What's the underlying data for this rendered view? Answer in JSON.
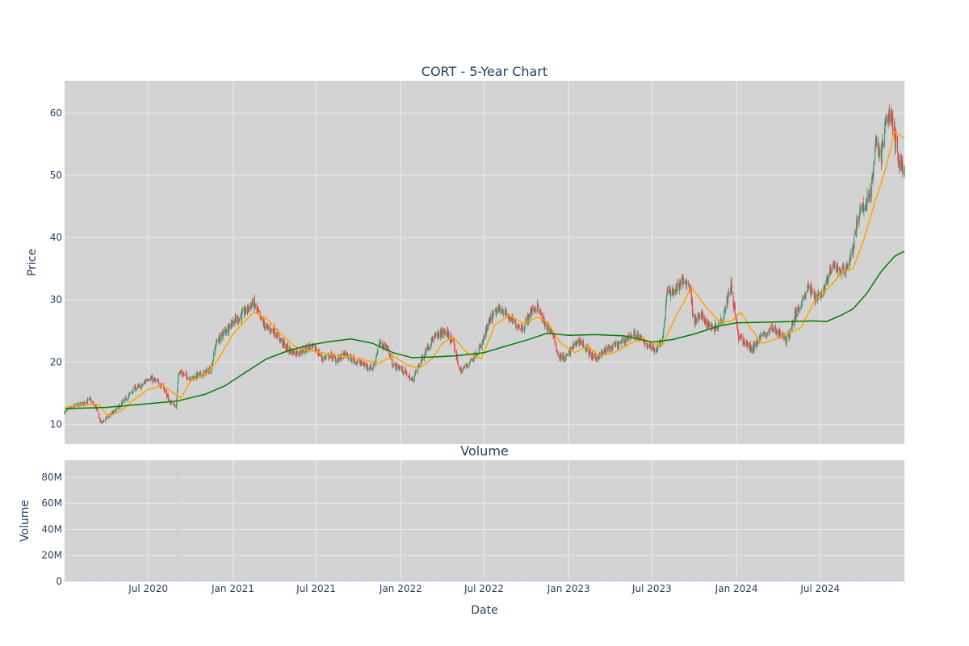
{
  "chart_data": {
    "type": "candlestick",
    "title": "CORT - 5-Year Chart",
    "subplot_title": "Volume",
    "xlabel": "Date",
    "ylabel_price": "Price",
    "ylabel_volume": "Volume",
    "x_range": [
      "2020-01-01",
      "2024-12-31"
    ],
    "x_ticks": [
      {
        "date": "2020-07-01",
        "label": "Jul 2020"
      },
      {
        "date": "2021-01-01",
        "label": "Jan 2021"
      },
      {
        "date": "2021-07-01",
        "label": "Jul 2021"
      },
      {
        "date": "2022-01-01",
        "label": "Jan 2022"
      },
      {
        "date": "2022-07-01",
        "label": "Jul 2022"
      },
      {
        "date": "2023-01-01",
        "label": "Jan 2023"
      },
      {
        "date": "2023-07-01",
        "label": "Jul 2023"
      },
      {
        "date": "2024-01-01",
        "label": "Jan 2024"
      },
      {
        "date": "2024-07-01",
        "label": "Jul 2024"
      }
    ],
    "price_ylim": [
      6.8,
      65.2
    ],
    "price_ticks": [
      10,
      20,
      30,
      40,
      50,
      60
    ],
    "volume_ylim": [
      0,
      93000000
    ],
    "volume_ticks": [
      {
        "value": 0,
        "label": "0"
      },
      {
        "value": 20000000,
        "label": "20M"
      },
      {
        "value": 40000000,
        "label": "40M"
      },
      {
        "value": 60000000,
        "label": "60M"
      },
      {
        "value": 80000000,
        "label": "80M"
      }
    ],
    "grid": true,
    "legend": "none",
    "colors": {
      "plot_bg": "#d3d3d3",
      "grid": "#ebebeb",
      "up": "#3d9970",
      "down": "#ef4444",
      "ma_short": "#ffa500",
      "ma_long": "#008000",
      "volume": "#c8c8f0"
    },
    "close_series": [
      [
        "2020-01-02",
        12.0
      ],
      [
        "2020-01-20",
        12.8
      ],
      [
        "2020-02-10",
        13.3
      ],
      [
        "2020-02-25",
        14.0
      ],
      [
        "2020-03-10",
        12.5
      ],
      [
        "2020-03-20",
        10.2
      ],
      [
        "2020-04-01",
        11.0
      ],
      [
        "2020-04-15",
        11.8
      ],
      [
        "2020-05-01",
        13.0
      ],
      [
        "2020-05-15",
        14.2
      ],
      [
        "2020-06-01",
        15.8
      ],
      [
        "2020-06-15",
        16.0
      ],
      [
        "2020-07-01",
        17.5
      ],
      [
        "2020-07-15",
        17.0
      ],
      [
        "2020-08-01",
        16.2
      ],
      [
        "2020-08-15",
        13.8
      ],
      [
        "2020-08-31",
        12.8
      ],
      [
        "2020-09-04",
        18.5
      ],
      [
        "2020-09-15",
        18.0
      ],
      [
        "2020-10-01",
        17.3
      ],
      [
        "2020-10-15",
        17.8
      ],
      [
        "2020-11-01",
        18.2
      ],
      [
        "2020-11-15",
        19.0
      ],
      [
        "2020-11-25",
        23.0
      ],
      [
        "2020-12-10",
        24.5
      ],
      [
        "2021-01-01",
        26.5
      ],
      [
        "2021-01-15",
        27.0
      ],
      [
        "2021-02-01",
        28.5
      ],
      [
        "2021-02-15",
        29.5
      ],
      [
        "2021-03-01",
        27.0
      ],
      [
        "2021-03-15",
        25.5
      ],
      [
        "2021-04-01",
        25.0
      ],
      [
        "2021-04-15",
        23.5
      ],
      [
        "2021-05-01",
        22.0
      ],
      [
        "2021-05-15",
        21.5
      ],
      [
        "2021-06-01",
        21.8
      ],
      [
        "2021-06-15",
        22.5
      ],
      [
        "2021-07-01",
        22.0
      ],
      [
        "2021-07-15",
        20.5
      ],
      [
        "2021-08-01",
        21.0
      ],
      [
        "2021-08-15",
        20.3
      ],
      [
        "2021-09-01",
        21.2
      ],
      [
        "2021-09-15",
        20.5
      ],
      [
        "2021-10-01",
        20.0
      ],
      [
        "2021-10-15",
        19.5
      ],
      [
        "2021-11-01",
        19.0
      ],
      [
        "2021-11-15",
        22.8
      ],
      [
        "2021-12-01",
        22.5
      ],
      [
        "2021-12-15",
        19.5
      ],
      [
        "2022-01-01",
        19.0
      ],
      [
        "2022-01-15",
        18.0
      ],
      [
        "2022-01-25",
        17.0
      ],
      [
        "2022-02-10",
        19.5
      ],
      [
        "2022-02-25",
        22.0
      ],
      [
        "2022-03-10",
        23.5
      ],
      [
        "2022-03-25",
        24.5
      ],
      [
        "2022-04-10",
        24.8
      ],
      [
        "2022-04-25",
        23.0
      ],
      [
        "2022-05-10",
        18.5
      ],
      [
        "2022-05-25",
        19.5
      ],
      [
        "2022-06-10",
        21.0
      ],
      [
        "2022-06-25",
        22.5
      ],
      [
        "2022-07-10",
        26.0
      ],
      [
        "2022-07-25",
        28.0
      ],
      [
        "2022-08-10",
        28.5
      ],
      [
        "2022-08-25",
        27.0
      ],
      [
        "2022-09-10",
        26.0
      ],
      [
        "2022-09-25",
        25.5
      ],
      [
        "2022-10-10",
        28.0
      ],
      [
        "2022-10-25",
        29.0
      ],
      [
        "2022-11-10",
        26.0
      ],
      [
        "2022-11-25",
        25.0
      ],
      [
        "2022-12-10",
        21.0
      ],
      [
        "2022-12-25",
        20.5
      ],
      [
        "2023-01-10",
        22.5
      ],
      [
        "2023-01-25",
        23.5
      ],
      [
        "2023-02-10",
        22.0
      ],
      [
        "2023-02-25",
        20.5
      ],
      [
        "2023-03-10",
        21.0
      ],
      [
        "2023-03-25",
        22.0
      ],
      [
        "2023-04-10",
        22.5
      ],
      [
        "2023-04-25",
        23.0
      ],
      [
        "2023-05-10",
        24.0
      ],
      [
        "2023-05-25",
        24.5
      ],
      [
        "2023-06-10",
        23.5
      ],
      [
        "2023-06-25",
        22.5
      ],
      [
        "2023-07-10",
        22.0
      ],
      [
        "2023-07-25",
        24.0
      ],
      [
        "2023-08-02",
        31.0
      ],
      [
        "2023-08-20",
        31.5
      ],
      [
        "2023-09-05",
        33.0
      ],
      [
        "2023-09-20",
        32.5
      ],
      [
        "2023-10-01",
        26.5
      ],
      [
        "2023-10-15",
        27.5
      ],
      [
        "2023-11-01",
        26.0
      ],
      [
        "2023-11-15",
        25.5
      ],
      [
        "2023-12-01",
        27.0
      ],
      [
        "2023-12-20",
        32.5
      ],
      [
        "2024-01-05",
        24.0
      ],
      [
        "2024-01-20",
        23.0
      ],
      [
        "2024-02-05",
        22.0
      ],
      [
        "2024-02-20",
        24.0
      ],
      [
        "2024-03-05",
        24.5
      ],
      [
        "2024-03-20",
        25.5
      ],
      [
        "2024-04-05",
        24.5
      ],
      [
        "2024-04-20",
        23.5
      ],
      [
        "2024-05-05",
        27.0
      ],
      [
        "2024-05-20",
        29.5
      ],
      [
        "2024-06-05",
        32.0
      ],
      [
        "2024-06-20",
        30.5
      ],
      [
        "2024-07-05",
        31.0
      ],
      [
        "2024-07-20",
        34.0
      ],
      [
        "2024-08-01",
        35.5
      ],
      [
        "2024-08-15",
        34.5
      ],
      [
        "2024-08-30",
        35.5
      ],
      [
        "2024-09-10",
        38.0
      ],
      [
        "2024-09-20",
        43.0
      ],
      [
        "2024-10-05",
        45.0
      ],
      [
        "2024-10-20",
        48.0
      ],
      [
        "2024-11-01",
        56.0
      ],
      [
        "2024-11-10",
        52.5
      ],
      [
        "2024-11-20",
        58.5
      ],
      [
        "2024-12-01",
        60.0
      ],
      [
        "2024-12-10",
        56.0
      ],
      [
        "2024-12-20",
        52.0
      ],
      [
        "2024-12-31",
        51.0
      ]
    ],
    "ma_short_series": [
      [
        "2020-01-02",
        12.7
      ],
      [
        "2020-02-15",
        13.2
      ],
      [
        "2020-03-15",
        13.2
      ],
      [
        "2020-04-05",
        11.3
      ],
      [
        "2020-05-01",
        12.0
      ],
      [
        "2020-06-01",
        14.0
      ],
      [
        "2020-07-01",
        15.6
      ],
      [
        "2020-08-01",
        16.2
      ],
      [
        "2020-08-25",
        15.0
      ],
      [
        "2020-09-10",
        14.2
      ],
      [
        "2020-10-01",
        17.0
      ],
      [
        "2020-11-01",
        17.8
      ],
      [
        "2020-12-01",
        20.5
      ],
      [
        "2021-01-01",
        24.5
      ],
      [
        "2021-02-15",
        28.0
      ],
      [
        "2021-03-15",
        27.0
      ],
      [
        "2021-04-15",
        24.5
      ],
      [
        "2021-05-15",
        22.5
      ],
      [
        "2021-06-15",
        21.8
      ],
      [
        "2021-07-15",
        21.5
      ],
      [
        "2021-08-15",
        21.0
      ],
      [
        "2021-09-15",
        20.8
      ],
      [
        "2021-10-15",
        20.3
      ],
      [
        "2021-11-15",
        19.8
      ],
      [
        "2021-12-15",
        21.0
      ],
      [
        "2022-01-15",
        19.5
      ],
      [
        "2022-02-10",
        19.0
      ],
      [
        "2022-03-10",
        20.5
      ],
      [
        "2022-04-01",
        23.0
      ],
      [
        "2022-04-25",
        24.0
      ],
      [
        "2022-05-25",
        21.5
      ],
      [
        "2022-06-25",
        20.5
      ],
      [
        "2022-07-25",
        26.0
      ],
      [
        "2022-08-25",
        27.5
      ],
      [
        "2022-09-25",
        26.2
      ],
      [
        "2022-10-25",
        27.2
      ],
      [
        "2022-11-15",
        26.5
      ],
      [
        "2022-12-15",
        23.0
      ],
      [
        "2023-01-15",
        21.5
      ],
      [
        "2023-02-10",
        22.5
      ],
      [
        "2023-03-10",
        21.0
      ],
      [
        "2023-04-10",
        21.5
      ],
      [
        "2023-05-10",
        22.8
      ],
      [
        "2023-06-10",
        23.8
      ],
      [
        "2023-07-10",
        22.8
      ],
      [
        "2023-07-25",
        22.9
      ],
      [
        "2023-08-20",
        27.0
      ],
      [
        "2023-09-25",
        32.0
      ],
      [
        "2023-10-25",
        29.0
      ],
      [
        "2023-11-25",
        26.5
      ],
      [
        "2023-12-20",
        26.5
      ],
      [
        "2024-01-10",
        28.0
      ],
      [
        "2024-02-05",
        25.0
      ],
      [
        "2024-02-25",
        23.0
      ],
      [
        "2024-03-20",
        23.5
      ],
      [
        "2024-04-20",
        24.5
      ],
      [
        "2024-05-20",
        25.5
      ],
      [
        "2024-06-20",
        30.0
      ],
      [
        "2024-07-20",
        32.0
      ],
      [
        "2024-08-20",
        34.5
      ],
      [
        "2024-09-10",
        35.0
      ],
      [
        "2024-10-01",
        39.0
      ],
      [
        "2024-10-25",
        45.0
      ],
      [
        "2024-11-20",
        51.0
      ],
      [
        "2024-12-10",
        57.0
      ],
      [
        "2024-12-31",
        56.0
      ]
    ],
    "ma_long_series": [
      [
        "2020-01-02",
        12.5
      ],
      [
        "2020-04-01",
        12.7
      ],
      [
        "2020-07-01",
        13.3
      ],
      [
        "2020-09-01",
        13.7
      ],
      [
        "2020-11-01",
        14.8
      ],
      [
        "2020-12-15",
        16.2
      ],
      [
        "2021-02-01",
        18.5
      ],
      [
        "2021-03-15",
        20.5
      ],
      [
        "2021-05-01",
        21.8
      ],
      [
        "2021-06-15",
        22.7
      ],
      [
        "2021-08-01",
        23.3
      ],
      [
        "2021-09-15",
        23.7
      ],
      [
        "2021-11-01",
        23.0
      ],
      [
        "2021-12-15",
        21.5
      ],
      [
        "2022-01-25",
        20.7
      ],
      [
        "2022-03-10",
        20.8
      ],
      [
        "2022-05-01",
        21.0
      ],
      [
        "2022-07-01",
        21.5
      ],
      [
        "2022-08-15",
        22.5
      ],
      [
        "2022-10-01",
        23.5
      ],
      [
        "2022-11-15",
        24.6
      ],
      [
        "2023-01-01",
        24.3
      ],
      [
        "2023-03-01",
        24.4
      ],
      [
        "2023-05-01",
        24.2
      ],
      [
        "2023-07-01",
        23.2
      ],
      [
        "2023-08-15",
        23.6
      ],
      [
        "2023-10-01",
        24.5
      ],
      [
        "2023-11-25",
        25.8
      ],
      [
        "2024-01-01",
        26.3
      ],
      [
        "2024-03-01",
        26.4
      ],
      [
        "2024-05-01",
        26.5
      ],
      [
        "2024-06-15",
        26.6
      ],
      [
        "2024-07-15",
        26.5
      ],
      [
        "2024-08-15",
        27.5
      ],
      [
        "2024-09-10",
        28.5
      ],
      [
        "2024-10-10",
        31.0
      ],
      [
        "2024-11-10",
        34.5
      ],
      [
        "2024-12-10",
        37.0
      ],
      [
        "2024-12-31",
        37.8
      ]
    ],
    "volume_typical": 1000000,
    "volume_spikes": [
      [
        "2020-09-04",
        89000000
      ],
      [
        "2020-09-05",
        12000000
      ],
      [
        "2021-11-25",
        8500000
      ],
      [
        "2021-12-05",
        7000000
      ],
      [
        "2023-10-02",
        4500000
      ],
      [
        "2024-01-05",
        6500000
      ],
      [
        "2022-07-01",
        2500000
      ],
      [
        "2023-08-02",
        3000000
      ]
    ]
  }
}
